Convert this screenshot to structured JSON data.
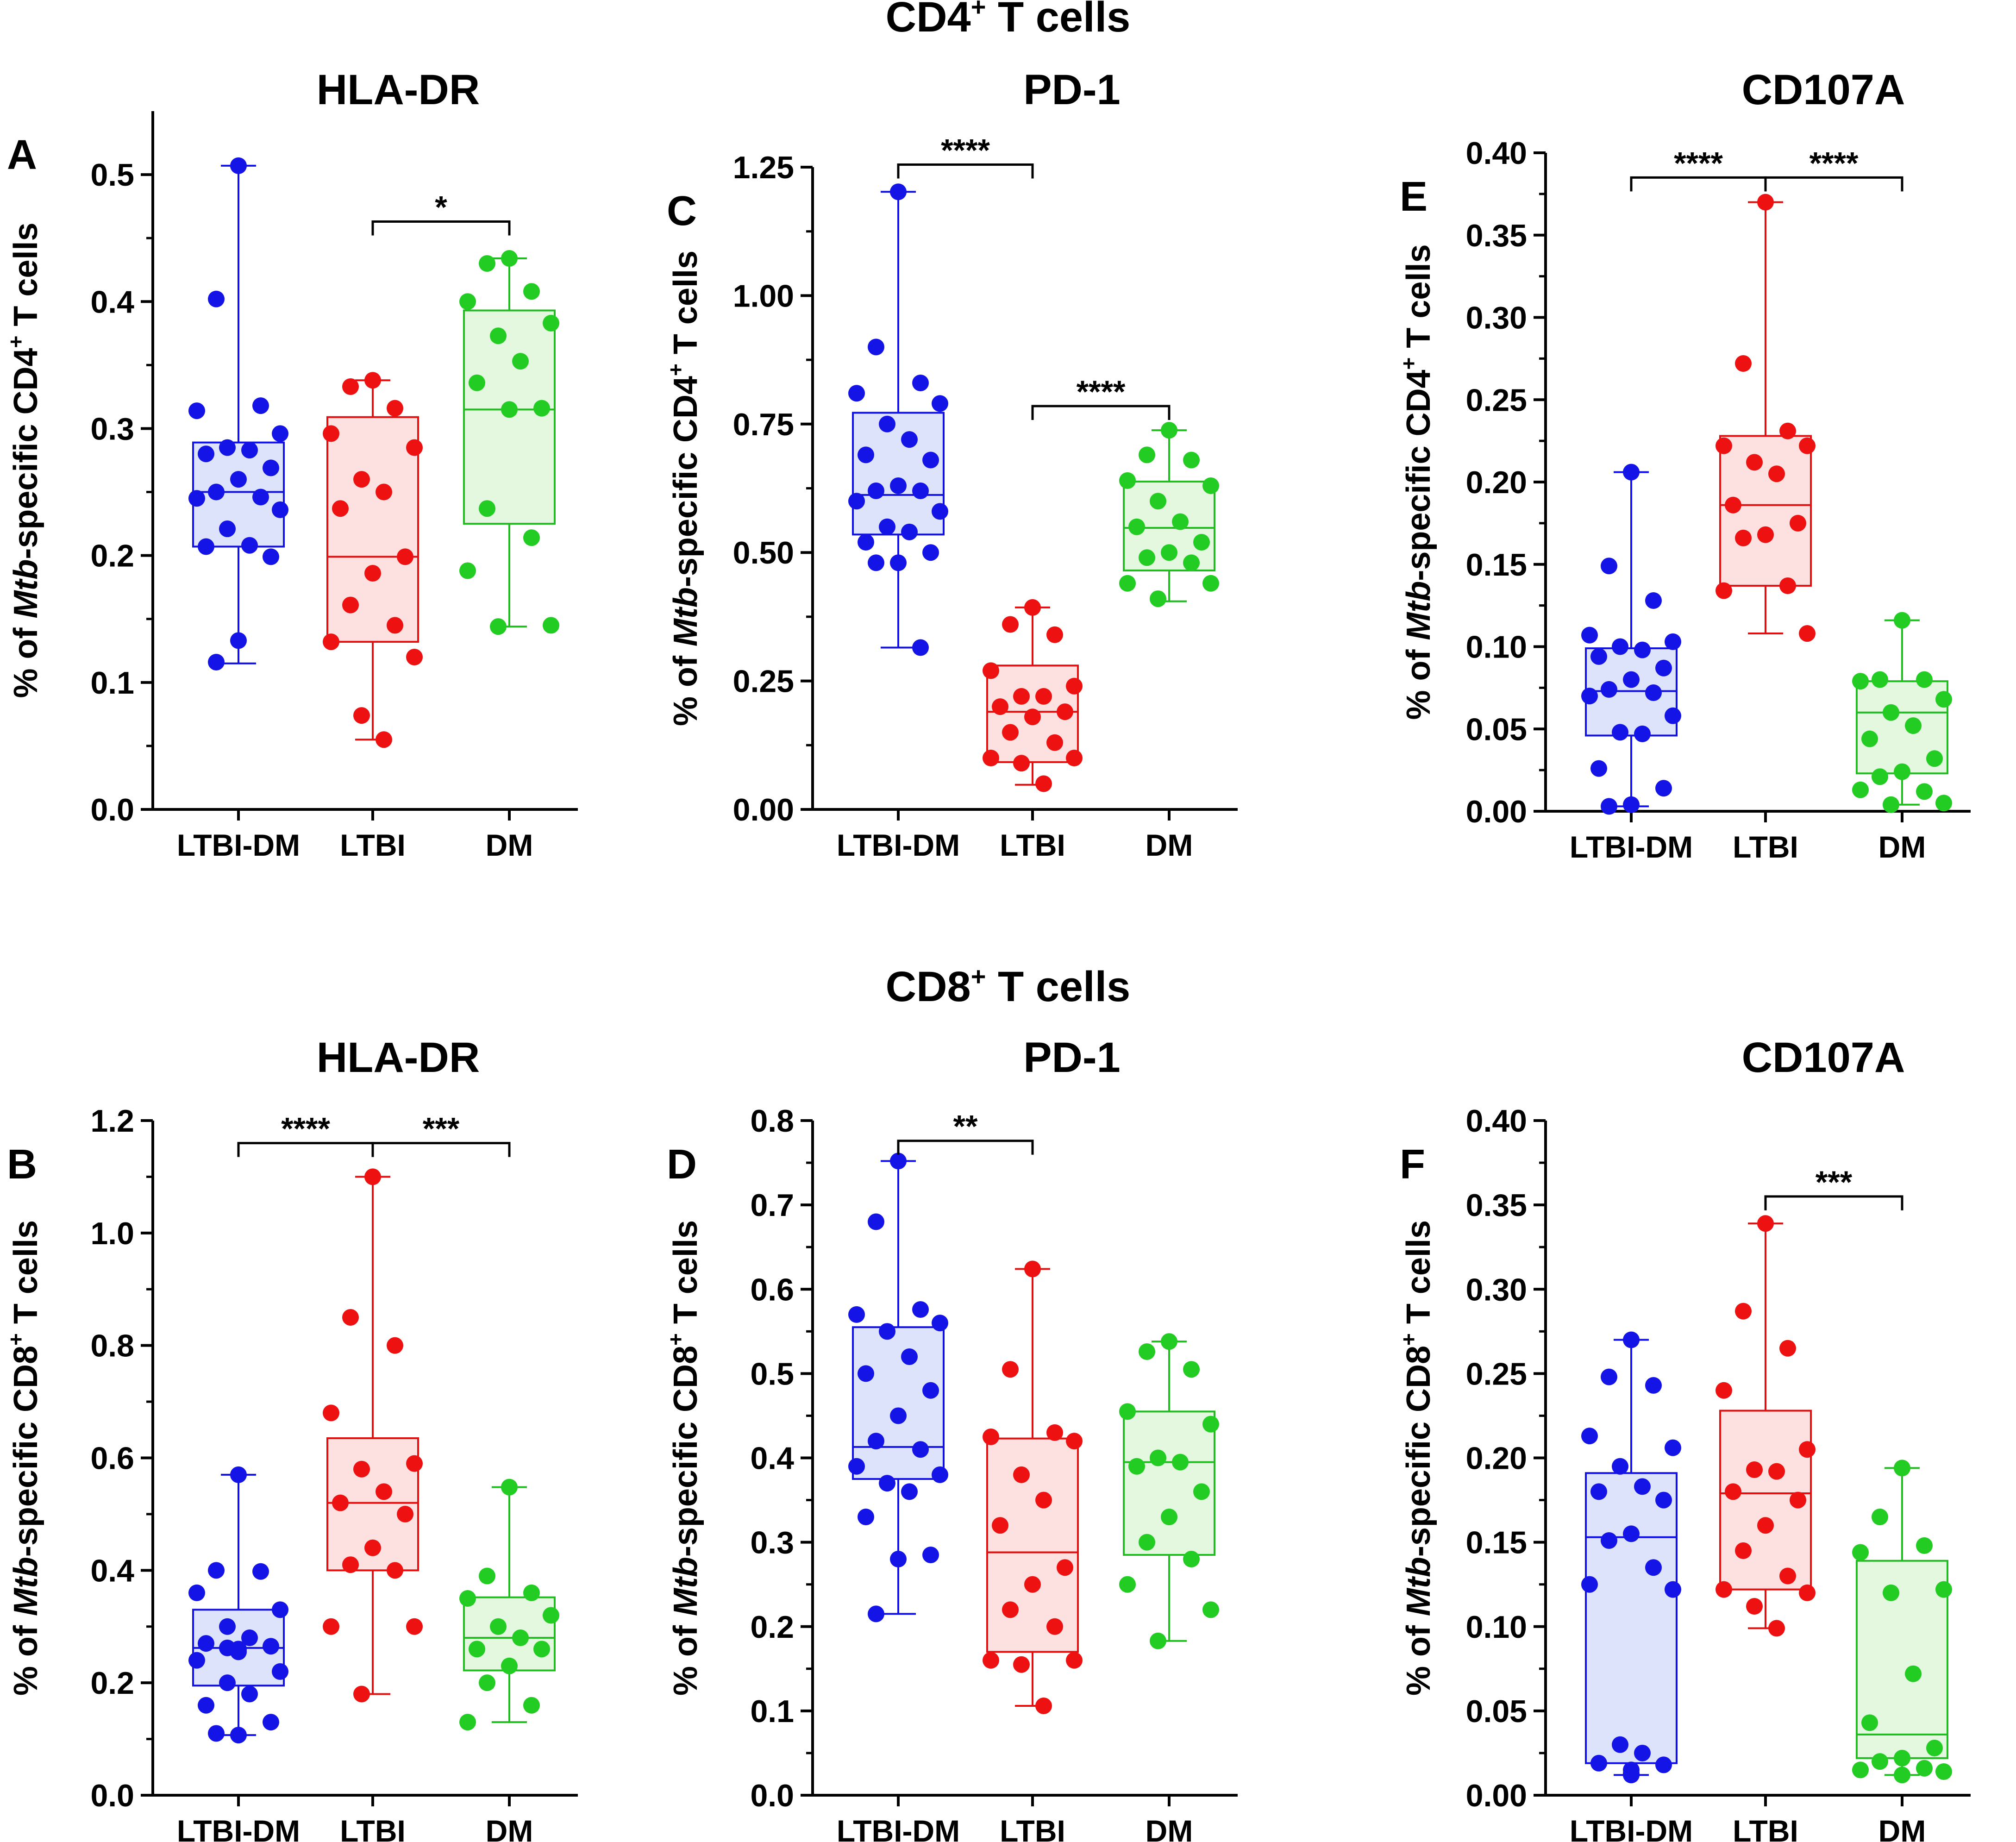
{
  "sections": [
    {
      "id": "cd4",
      "pre": "CD4",
      "sup": "+",
      "post": " T cells"
    },
    {
      "id": "cd8",
      "pre": "CD8",
      "sup": "+",
      "post": " T cells"
    }
  ],
  "colors": {
    "LTBI-DM": {
      "stroke": "#1010e0",
      "fill": "#dde3fb",
      "dot": "#1414e6"
    },
    "LTBI": {
      "stroke": "#e01010",
      "fill": "#fde0e0",
      "dot": "#ee1111"
    },
    "DM": {
      "stroke": "#22bb22",
      "fill": "#e3f8df",
      "dot": "#22cc22"
    }
  },
  "chart_data": [
    {
      "panel": "A",
      "type": "box",
      "title": "HLA-DR",
      "ylabel": {
        "pre": "% of ",
        "italic": "Mtb",
        "mid": "-specific CD4",
        "sup": "+",
        "post": " T cells"
      },
      "categories": [
        "LTBI-DM",
        "LTBI",
        "DM"
      ],
      "ylim": [
        0,
        0.55
      ],
      "yticks": [
        0.0,
        0.1,
        0.2,
        0.3,
        0.4,
        0.5
      ],
      "tick_labels": [
        "0.0",
        "0.1",
        "0.2",
        "0.3",
        "0.4",
        "0.5"
      ],
      "boxes": [
        {
          "min": 0.115,
          "q1": 0.207,
          "median": 0.25,
          "q3": 0.289,
          "max": 0.507
        },
        {
          "min": 0.055,
          "q1": 0.132,
          "median": 0.199,
          "q3": 0.309,
          "max": 0.338
        },
        {
          "min": 0.144,
          "q1": 0.225,
          "median": 0.315,
          "q3": 0.393,
          "max": 0.434
        }
      ],
      "points": [
        [
          0.507,
          0.402,
          0.318,
          0.314,
          0.296,
          0.285,
          0.283,
          0.28,
          0.269,
          0.26,
          0.25,
          0.246,
          0.245,
          0.236,
          0.221,
          0.208,
          0.207,
          0.199,
          0.133,
          0.116
        ],
        [
          0.338,
          0.333,
          0.316,
          0.296,
          0.285,
          0.26,
          0.25,
          0.237,
          0.199,
          0.186,
          0.161,
          0.145,
          0.132,
          0.12,
          0.074,
          0.055
        ],
        [
          0.434,
          0.43,
          0.408,
          0.4,
          0.383,
          0.373,
          0.353,
          0.336,
          0.316,
          0.315,
          0.237,
          0.214,
          0.188,
          0.145,
          0.144
        ]
      ],
      "sig": [
        {
          "from": 1,
          "to": 2,
          "y": 0.463,
          "label": "*"
        }
      ]
    },
    {
      "panel": "C",
      "type": "box",
      "title": "PD-1",
      "ylabel": {
        "pre": "% of ",
        "italic": "Mtb",
        "mid": "-specific CD4",
        "sup": "+",
        "post": " T cells"
      },
      "categories": [
        "LTBI-DM",
        "LTBI",
        "DM"
      ],
      "ylim": [
        0,
        1.25
      ],
      "yticks": [
        0.0,
        0.25,
        0.5,
        0.75,
        1.0,
        1.25
      ],
      "tick_labels": [
        "0.00",
        "0.25",
        "0.50",
        "0.75",
        "1.00",
        "1.25"
      ],
      "boxes": [
        {
          "min": 0.315,
          "q1": 0.535,
          "median": 0.612,
          "q3": 0.772,
          "max": 1.202
        },
        {
          "min": 0.048,
          "q1": 0.092,
          "median": 0.19,
          "q3": 0.28,
          "max": 0.393
        },
        {
          "min": 0.405,
          "q1": 0.465,
          "median": 0.548,
          "q3": 0.638,
          "max": 0.738
        }
      ],
      "points": [
        [
          1.202,
          0.9,
          0.83,
          0.81,
          0.79,
          0.75,
          0.72,
          0.69,
          0.68,
          0.63,
          0.62,
          0.62,
          0.6,
          0.58,
          0.55,
          0.54,
          0.52,
          0.5,
          0.48,
          0.48,
          0.315
        ],
        [
          0.393,
          0.36,
          0.34,
          0.27,
          0.24,
          0.22,
          0.22,
          0.2,
          0.19,
          0.18,
          0.15,
          0.13,
          0.1,
          0.1,
          0.09,
          0.05
        ],
        [
          0.738,
          0.69,
          0.68,
          0.64,
          0.63,
          0.6,
          0.56,
          0.55,
          0.52,
          0.5,
          0.49,
          0.48,
          0.44,
          0.44,
          0.41
        ]
      ],
      "sig": [
        {
          "from": 0,
          "to": 1,
          "y": 1.255,
          "label": "****"
        },
        {
          "from": 1,
          "to": 2,
          "y": 0.785,
          "label": "****"
        }
      ]
    },
    {
      "panel": "E",
      "type": "box",
      "title": "CD107A",
      "ylabel": {
        "pre": "% of ",
        "italic": "Mtb",
        "mid": "-specific CD4",
        "sup": "+",
        "post": " T cells"
      },
      "categories": [
        "LTBI-DM",
        "LTBI",
        "DM"
      ],
      "ylim": [
        0,
        0.4
      ],
      "yticks": [
        0.0,
        0.05,
        0.1,
        0.15,
        0.2,
        0.25,
        0.3,
        0.35,
        0.4
      ],
      "tick_labels": [
        "0.00",
        "0.05",
        "0.10",
        "0.15",
        "0.20",
        "0.25",
        "0.30",
        "0.35",
        "0.40"
      ],
      "boxes": [
        {
          "min": 0.003,
          "q1": 0.046,
          "median": 0.073,
          "q3": 0.099,
          "max": 0.206
        },
        {
          "min": 0.108,
          "q1": 0.137,
          "median": 0.186,
          "q3": 0.228,
          "max": 0.37
        },
        {
          "min": 0.004,
          "q1": 0.023,
          "median": 0.06,
          "q3": 0.079,
          "max": 0.116
        }
      ],
      "points": [
        [
          0.206,
          0.149,
          0.128,
          0.107,
          0.103,
          0.1,
          0.098,
          0.094,
          0.087,
          0.08,
          0.074,
          0.072,
          0.07,
          0.058,
          0.048,
          0.047,
          0.026,
          0.014,
          0.004,
          0.003
        ],
        [
          0.37,
          0.272,
          0.231,
          0.222,
          0.222,
          0.212,
          0.205,
          0.186,
          0.175,
          0.168,
          0.166,
          0.137,
          0.134,
          0.108
        ],
        [
          0.116,
          0.08,
          0.08,
          0.079,
          0.068,
          0.06,
          0.052,
          0.044,
          0.032,
          0.024,
          0.021,
          0.012,
          0.013,
          0.005,
          0.004
        ]
      ],
      "sig": [
        {
          "from": 0,
          "to": 1,
          "y": 0.385,
          "label": "****"
        },
        {
          "from": 1,
          "to": 2,
          "y": 0.385,
          "label": "****"
        }
      ]
    },
    {
      "panel": "B",
      "type": "box",
      "title": "HLA-DR",
      "ylabel": {
        "pre": "% of ",
        "italic": "Mtb",
        "mid": "-specific CD8",
        "sup": "+",
        "post": " T cells"
      },
      "categories": [
        "LTBI-DM",
        "LTBI",
        "DM"
      ],
      "ylim": [
        0,
        1.2
      ],
      "yticks": [
        0.0,
        0.2,
        0.4,
        0.6,
        0.8,
        1.0,
        1.2
      ],
      "tick_labels": [
        "0.0",
        "0.2",
        "0.4",
        "0.6",
        "0.8",
        "1.0",
        "1.2"
      ],
      "boxes": [
        {
          "min": 0.107,
          "q1": 0.195,
          "median": 0.262,
          "q3": 0.33,
          "max": 0.57
        },
        {
          "min": 0.18,
          "q1": 0.4,
          "median": 0.52,
          "q3": 0.635,
          "max": 1.1
        },
        {
          "min": 0.13,
          "q1": 0.222,
          "median": 0.28,
          "q3": 0.352,
          "max": 0.548
        }
      ],
      "points": [
        [
          0.57,
          0.4,
          0.398,
          0.36,
          0.33,
          0.3,
          0.28,
          0.27,
          0.265,
          0.262,
          0.26,
          0.255,
          0.24,
          0.22,
          0.2,
          0.18,
          0.16,
          0.13,
          0.107,
          0.11
        ],
        [
          1.1,
          0.85,
          0.8,
          0.68,
          0.59,
          0.58,
          0.54,
          0.52,
          0.5,
          0.44,
          0.41,
          0.4,
          0.3,
          0.3,
          0.18
        ],
        [
          0.548,
          0.39,
          0.36,
          0.35,
          0.32,
          0.3,
          0.28,
          0.26,
          0.26,
          0.23,
          0.2,
          0.16,
          0.13
        ]
      ],
      "sig": [
        {
          "from": 0,
          "to": 1,
          "y": 1.16,
          "label": "****"
        },
        {
          "from": 1,
          "to": 2,
          "y": 1.16,
          "label": "***"
        }
      ]
    },
    {
      "panel": "D",
      "type": "box",
      "title": "PD-1",
      "ylabel": {
        "pre": "% of ",
        "italic": "Mtb",
        "mid": "-specific CD8",
        "sup": "+",
        "post": " T cells"
      },
      "categories": [
        "LTBI-DM",
        "LTBI",
        "DM"
      ],
      "ylim": [
        0,
        0.8
      ],
      "yticks": [
        0.0,
        0.1,
        0.2,
        0.3,
        0.4,
        0.5,
        0.6,
        0.7,
        0.8
      ],
      "tick_labels": [
        "0.0",
        "0.1",
        "0.2",
        "0.3",
        "0.4",
        "0.5",
        "0.6",
        "0.7",
        "0.8"
      ],
      "boxes": [
        {
          "min": 0.215,
          "q1": 0.375,
          "median": 0.413,
          "q3": 0.555,
          "max": 0.752
        },
        {
          "min": 0.106,
          "q1": 0.17,
          "median": 0.288,
          "q3": 0.423,
          "max": 0.624
        },
        {
          "min": 0.183,
          "q1": 0.285,
          "median": 0.395,
          "q3": 0.455,
          "max": 0.538
        }
      ],
      "points": [
        [
          0.752,
          0.68,
          0.576,
          0.57,
          0.56,
          0.55,
          0.52,
          0.5,
          0.48,
          0.45,
          0.42,
          0.41,
          0.39,
          0.38,
          0.37,
          0.36,
          0.33,
          0.285,
          0.28,
          0.215
        ],
        [
          0.624,
          0.505,
          0.43,
          0.425,
          0.42,
          0.38,
          0.35,
          0.32,
          0.27,
          0.25,
          0.22,
          0.2,
          0.16,
          0.16,
          0.155,
          0.106
        ],
        [
          0.538,
          0.526,
          0.505,
          0.455,
          0.44,
          0.4,
          0.395,
          0.39,
          0.36,
          0.33,
          0.3,
          0.28,
          0.25,
          0.22,
          0.183
        ]
      ],
      "sig": [
        {
          "from": 0,
          "to": 1,
          "y": 0.776,
          "label": "**"
        }
      ]
    },
    {
      "panel": "F",
      "type": "box",
      "title": "CD107A",
      "ylabel": {
        "pre": "% of ",
        "italic": "Mtb",
        "mid": "-specific CD8",
        "sup": "+",
        "post": " T cells"
      },
      "categories": [
        "LTBI-DM",
        "LTBI",
        "DM"
      ],
      "ylim": [
        0,
        0.4
      ],
      "yticks": [
        0.0,
        0.05,
        0.1,
        0.15,
        0.2,
        0.25,
        0.3,
        0.35,
        0.4
      ],
      "tick_labels": [
        "0.00",
        "0.05",
        "0.10",
        "0.15",
        "0.20",
        "0.25",
        "0.30",
        "0.35",
        "0.40"
      ],
      "boxes": [
        {
          "min": 0.012,
          "q1": 0.019,
          "median": 0.153,
          "q3": 0.191,
          "max": 0.27
        },
        {
          "min": 0.099,
          "q1": 0.122,
          "median": 0.179,
          "q3": 0.228,
          "max": 0.339
        },
        {
          "min": 0.012,
          "q1": 0.022,
          "median": 0.036,
          "q3": 0.139,
          "max": 0.194
        }
      ],
      "points": [
        [
          0.27,
          0.248,
          0.243,
          0.213,
          0.206,
          0.195,
          0.183,
          0.18,
          0.175,
          0.155,
          0.151,
          0.135,
          0.125,
          0.122,
          0.03,
          0.025,
          0.019,
          0.018,
          0.015,
          0.013,
          0.012
        ],
        [
          0.339,
          0.287,
          0.265,
          0.24,
          0.205,
          0.193,
          0.192,
          0.18,
          0.175,
          0.16,
          0.145,
          0.13,
          0.122,
          0.12,
          0.112,
          0.099
        ],
        [
          0.194,
          0.165,
          0.148,
          0.144,
          0.122,
          0.12,
          0.072,
          0.043,
          0.028,
          0.022,
          0.02,
          0.016,
          0.015,
          0.014,
          0.012
        ]
      ],
      "sig": [
        {
          "from": 1,
          "to": 2,
          "y": 0.355,
          "label": "***"
        }
      ]
    }
  ]
}
